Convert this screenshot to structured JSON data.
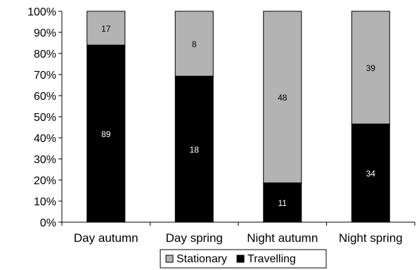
{
  "chart_data": {
    "type": "bar",
    "stacked": true,
    "normalized": true,
    "categories": [
      "Day autumn",
      "Day spring",
      "Night autumn",
      "Night spring"
    ],
    "series": [
      {
        "name": "Travelling",
        "values": [
          89,
          18,
          11,
          34
        ],
        "color": "#000000"
      },
      {
        "name": "Stationary",
        "values": [
          17,
          8,
          48,
          39
        ],
        "color": "#b3b3b3"
      }
    ],
    "ylim": [
      0,
      100
    ],
    "yticks": [
      "0%",
      "10%",
      "20%",
      "30%",
      "40%",
      "50%",
      "60%",
      "70%",
      "80%",
      "90%",
      "100%"
    ],
    "grid": false,
    "legend": {
      "placement": "bottom",
      "entries": [
        "Stationary",
        "Travelling"
      ]
    }
  }
}
